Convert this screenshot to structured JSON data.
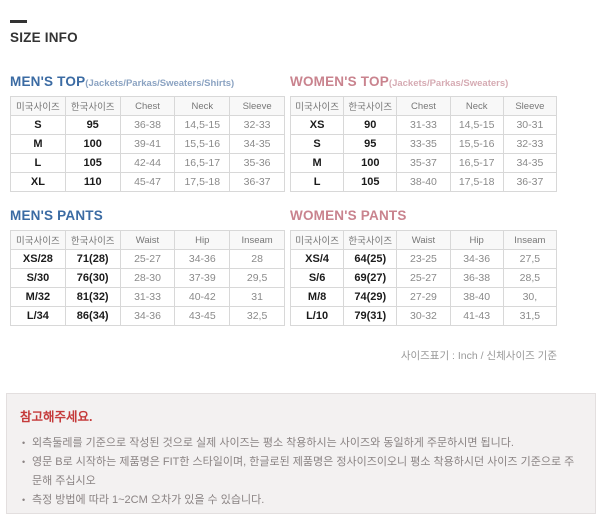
{
  "page": {
    "title": "SIZE INFO"
  },
  "colors": {
    "title": "#333333",
    "men_accent": "#3b6ba3",
    "men_sub_accent": "#8ba3c2",
    "women_accent": "#c9838e",
    "women_sub_accent": "#d6abb3",
    "notice_title": "#c53a3a",
    "table_border": "#d8d8d8",
    "header_bg": "#f8f8f8"
  },
  "tables": [
    {
      "id": "mens-top",
      "title": "MEN'S TOP",
      "subtitle": "(Jackets/Parkas/Sweaters/Shirts)",
      "accent": "#3b6ba3",
      "sub_accent": "#8ba3c2",
      "headers": [
        "미국사이즈",
        "한국사이즈",
        "Chest",
        "Neck",
        "Sleeve"
      ],
      "rows": [
        [
          "S",
          "95",
          "36-38",
          "14,5-15",
          "32-33"
        ],
        [
          "M",
          "100",
          "39-41",
          "15,5-16",
          "34-35"
        ],
        [
          "L",
          "105",
          "42-44",
          "16,5-17",
          "35-36"
        ],
        [
          "XL",
          "110",
          "45-47",
          "17,5-18",
          "36-37"
        ]
      ]
    },
    {
      "id": "womens-top",
      "title": "WOMEN'S TOP",
      "subtitle": "(Jackets/Parkas/Sweaters)",
      "accent": "#c9838e",
      "sub_accent": "#d6abb3",
      "headers": [
        "미국사이즈",
        "한국사이즈",
        "Chest",
        "Neck",
        "Sleeve"
      ],
      "rows": [
        [
          "XS",
          "90",
          "31-33",
          "14,5-15",
          "30-31"
        ],
        [
          "S",
          "95",
          "33-35",
          "15,5-16",
          "32-33"
        ],
        [
          "M",
          "100",
          "35-37",
          "16,5-17",
          "34-35"
        ],
        [
          "L",
          "105",
          "38-40",
          "17,5-18",
          "36-37"
        ]
      ]
    },
    {
      "id": "mens-pants",
      "title": "MEN'S PANTS",
      "subtitle": "",
      "accent": "#3b6ba3",
      "sub_accent": "#8ba3c2",
      "headers": [
        "미국사이즈",
        "한국사이즈",
        "Waist",
        "Hip",
        "Inseam"
      ],
      "rows": [
        [
          "XS/28",
          "71(28)",
          "25-27",
          "34-36",
          "28"
        ],
        [
          "S/30",
          "76(30)",
          "28-30",
          "37-39",
          "29,5"
        ],
        [
          "M/32",
          "81(32)",
          "31-33",
          "40-42",
          "31"
        ],
        [
          "L/34",
          "86(34)",
          "34-36",
          "43-45",
          "32,5"
        ]
      ]
    },
    {
      "id": "womens-pants",
      "title": "WOMEN'S PANTS",
      "subtitle": "",
      "accent": "#c9838e",
      "sub_accent": "#d6abb3",
      "headers": [
        "미국사이즈",
        "한국사이즈",
        "Waist",
        "Hip",
        "Inseam"
      ],
      "rows": [
        [
          "XS/4",
          "64(25)",
          "23-25",
          "34-36",
          "27,5"
        ],
        [
          "S/6",
          "69(27)",
          "25-27",
          "36-38",
          "28,5"
        ],
        [
          "M/8",
          "74(29)",
          "27-29",
          "38-40",
          "30,"
        ],
        [
          "L/10",
          "79(31)",
          "30-32",
          "41-43",
          "31,5"
        ]
      ]
    }
  ],
  "footnote": "사이즈표기 : Inch / 신체사이즈 기준",
  "notice": {
    "title": "참고해주세요.",
    "bullet": "•",
    "items": [
      "외측둘레를 기준으로 작성된 것으로 실제 사이즈는 평소 착용하시는 사이즈와 동일하게 주문하시면 됩니다.",
      "영문 B로 시작하는 제품명은 FIT한 스타일이며, 한글로된 제품명은 정사이즈이오니 평소 착용하시던 사이즈 기준으로 주문해 주십시오",
      "측정 방법에 따라 1~2CM 오차가 있을 수 있습니다."
    ]
  }
}
